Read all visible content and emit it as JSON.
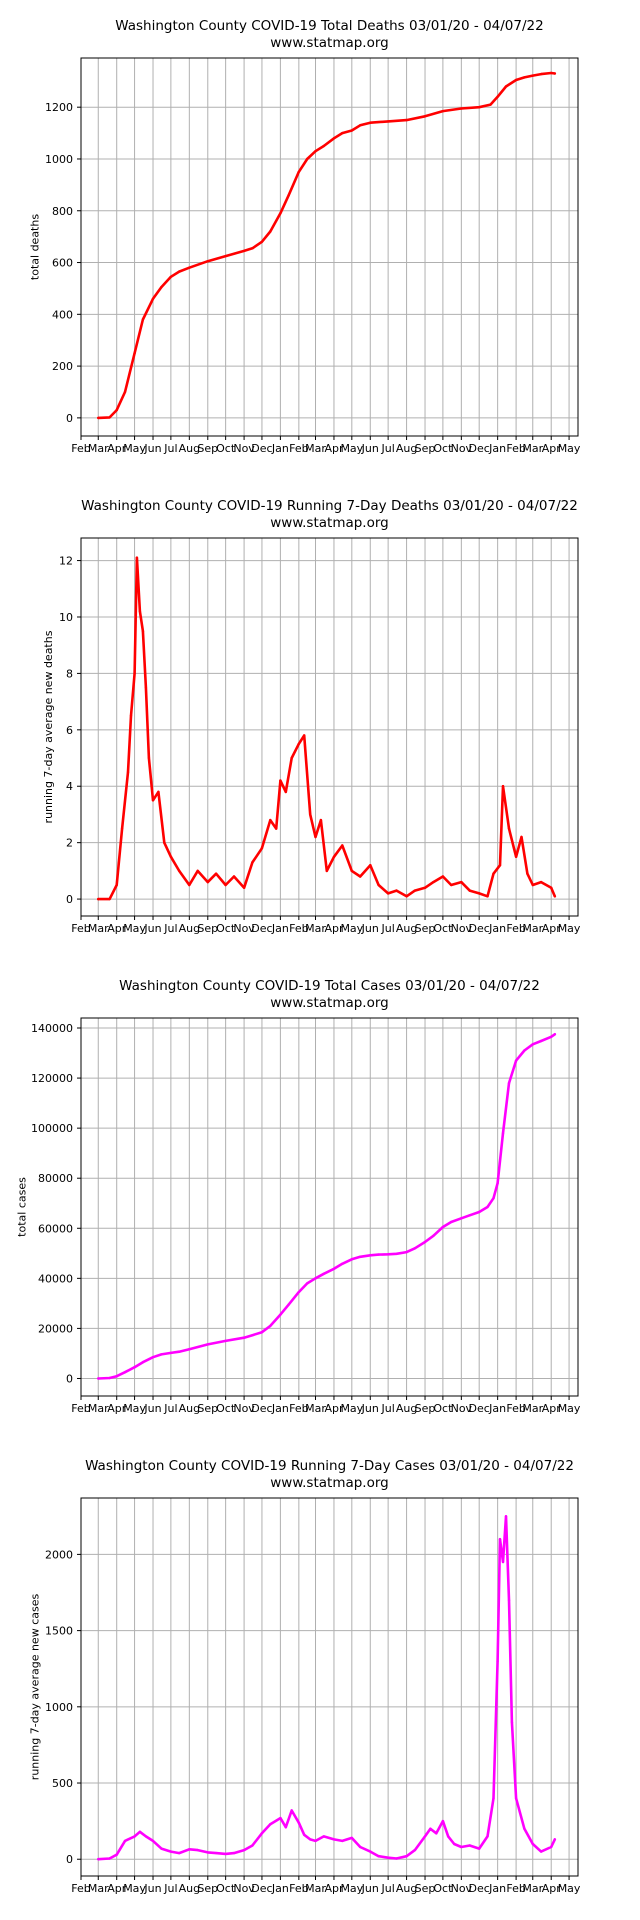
{
  "chart_data": [
    {
      "type": "line",
      "title": "Washington County COVID-19 Total Deaths 03/01/20 - 04/07/22",
      "subtitle": "www.statmap.org",
      "ylabel": "total deaths",
      "xlabel": "",
      "grid": true,
      "line_color": "#ff0000",
      "x_tick_labels": [
        "Feb",
        "Mar",
        "Apr",
        "May",
        "Jun",
        "Jul",
        "Aug",
        "Sep",
        "Oct",
        "Nov",
        "Dec",
        "Jan",
        "Feb",
        "Mar",
        "Apr",
        "May",
        "Jun",
        "Jul",
        "Aug",
        "Sep",
        "Oct",
        "Nov",
        "Dec",
        "Jan",
        "Feb",
        "Mar",
        "Apr",
        "May"
      ],
      "y_ticks": [
        0,
        200,
        400,
        600,
        800,
        1000,
        1200
      ],
      "ylim": [
        -70,
        1390
      ],
      "x": [
        "2020-03-01",
        "2020-03-20",
        "2020-04-01",
        "2020-04-15",
        "2020-05-01",
        "2020-05-15",
        "2020-06-01",
        "2020-06-15",
        "2020-07-01",
        "2020-07-15",
        "2020-08-01",
        "2020-09-01",
        "2020-10-01",
        "2020-11-01",
        "2020-11-15",
        "2020-12-01",
        "2020-12-15",
        "2021-01-01",
        "2021-01-15",
        "2021-02-01",
        "2021-02-15",
        "2021-03-01",
        "2021-03-15",
        "2021-04-01",
        "2021-04-15",
        "2021-05-01",
        "2021-05-15",
        "2021-06-01",
        "2021-07-01",
        "2021-08-01",
        "2021-09-01",
        "2021-10-01",
        "2021-11-01",
        "2021-12-01",
        "2021-12-20",
        "2022-01-01",
        "2022-01-15",
        "2022-02-01",
        "2022-02-15",
        "2022-03-01",
        "2022-03-15",
        "2022-04-01",
        "2022-04-07"
      ],
      "y": [
        0,
        2,
        30,
        100,
        250,
        380,
        460,
        505,
        545,
        565,
        580,
        605,
        625,
        645,
        655,
        680,
        720,
        790,
        860,
        950,
        1000,
        1030,
        1050,
        1080,
        1100,
        1110,
        1130,
        1140,
        1145,
        1150,
        1165,
        1185,
        1195,
        1200,
        1210,
        1240,
        1280,
        1305,
        1315,
        1322,
        1328,
        1332,
        1330
      ]
    },
    {
      "type": "line",
      "title": "Washington County COVID-19 Running 7-Day Deaths 03/01/20 - 04/07/22",
      "subtitle": "www.statmap.org",
      "ylabel": "running 7-day average new deaths",
      "xlabel": "",
      "grid": true,
      "line_color": "#ff0000",
      "x_tick_labels": [
        "Feb",
        "Mar",
        "Apr",
        "May",
        "Jun",
        "Jul",
        "Aug",
        "Sep",
        "Oct",
        "Nov",
        "Dec",
        "Jan",
        "Feb",
        "Mar",
        "Apr",
        "May",
        "Jun",
        "Jul",
        "Aug",
        "Sep",
        "Oct",
        "Nov",
        "Dec",
        "Jan",
        "Feb",
        "Mar",
        "Apr",
        "May"
      ],
      "y_ticks": [
        0,
        2,
        4,
        6,
        8,
        10,
        12
      ],
      "ylim": [
        -0.6,
        12.8
      ],
      "x": [
        "2020-03-01",
        "2020-03-20",
        "2020-04-01",
        "2020-04-10",
        "2020-04-20",
        "2020-04-25",
        "2020-05-01",
        "2020-05-05",
        "2020-05-10",
        "2020-05-15",
        "2020-05-20",
        "2020-05-25",
        "2020-06-01",
        "2020-06-10",
        "2020-06-20",
        "2020-07-01",
        "2020-07-15",
        "2020-08-01",
        "2020-08-15",
        "2020-09-01",
        "2020-09-15",
        "2020-10-01",
        "2020-10-15",
        "2020-11-01",
        "2020-11-15",
        "2020-12-01",
        "2020-12-15",
        "2020-12-25",
        "2021-01-01",
        "2021-01-10",
        "2021-01-20",
        "2021-02-01",
        "2021-02-10",
        "2021-02-20",
        "2021-03-01",
        "2021-03-10",
        "2021-03-20",
        "2021-04-01",
        "2021-04-15",
        "2021-05-01",
        "2021-05-15",
        "2021-06-01",
        "2021-06-15",
        "2021-07-01",
        "2021-07-15",
        "2021-08-01",
        "2021-08-15",
        "2021-09-01",
        "2021-09-15",
        "2021-10-01",
        "2021-10-15",
        "2021-11-01",
        "2021-11-15",
        "2021-12-01",
        "2021-12-15",
        "2021-12-25",
        "2022-01-05",
        "2022-01-10",
        "2022-01-20",
        "2022-02-01",
        "2022-02-10",
        "2022-02-20",
        "2022-03-01",
        "2022-03-15",
        "2022-04-01",
        "2022-04-07"
      ],
      "y": [
        0,
        0,
        0.5,
        2.5,
        4.5,
        6.5,
        8,
        12.1,
        10.2,
        9.5,
        7.5,
        5,
        3.5,
        3.8,
        2,
        1.5,
        1,
        0.5,
        1,
        0.6,
        0.9,
        0.5,
        0.8,
        0.4,
        1.3,
        1.8,
        2.8,
        2.5,
        4.2,
        3.8,
        5,
        5.5,
        5.8,
        3,
        2.2,
        2.8,
        1,
        1.5,
        1.9,
        1,
        0.8,
        1.2,
        0.5,
        0.2,
        0.3,
        0.1,
        0.3,
        0.4,
        0.6,
        0.8,
        0.5,
        0.6,
        0.3,
        0.2,
        0.1,
        0.9,
        1.2,
        4,
        2.5,
        1.5,
        2.2,
        0.9,
        0.5,
        0.6,
        0.4,
        0.1
      ]
    },
    {
      "type": "line",
      "title": "Washington County COVID-19 Total Cases 03/01/20 - 04/07/22",
      "subtitle": "www.statmap.org",
      "ylabel": "total cases",
      "xlabel": "",
      "grid": true,
      "line_color": "#ff00ff",
      "x_tick_labels": [
        "Feb",
        "Mar",
        "Apr",
        "May",
        "Jun",
        "Jul",
        "Aug",
        "Sep",
        "Oct",
        "Nov",
        "Dec",
        "Jan",
        "Feb",
        "Mar",
        "Apr",
        "May",
        "Jun",
        "Jul",
        "Aug",
        "Sep",
        "Oct",
        "Nov",
        "Dec",
        "Jan",
        "Feb",
        "Mar",
        "Apr",
        "May"
      ],
      "y_ticks": [
        0,
        20000,
        40000,
        60000,
        80000,
        100000,
        120000,
        140000
      ],
      "ylim": [
        -7000,
        144000
      ],
      "x": [
        "2020-03-01",
        "2020-03-20",
        "2020-04-01",
        "2020-04-15",
        "2020-05-01",
        "2020-05-15",
        "2020-06-01",
        "2020-06-15",
        "2020-07-01",
        "2020-07-15",
        "2020-08-01",
        "2020-09-01",
        "2020-10-01",
        "2020-11-01",
        "2020-11-15",
        "2020-12-01",
        "2020-12-15",
        "2021-01-01",
        "2021-01-15",
        "2021-02-01",
        "2021-02-15",
        "2021-03-01",
        "2021-03-15",
        "2021-04-01",
        "2021-04-15",
        "2021-05-01",
        "2021-05-15",
        "2021-06-01",
        "2021-06-15",
        "2021-07-01",
        "2021-07-15",
        "2021-08-01",
        "2021-08-15",
        "2021-09-01",
        "2021-09-15",
        "2021-10-01",
        "2021-10-15",
        "2021-11-01",
        "2021-11-15",
        "2021-12-01",
        "2021-12-15",
        "2021-12-25",
        "2022-01-01",
        "2022-01-10",
        "2022-01-20",
        "2022-02-01",
        "2022-02-15",
        "2022-03-01",
        "2022-03-15",
        "2022-04-01",
        "2022-04-07"
      ],
      "y": [
        0,
        200,
        900,
        2500,
        4500,
        6500,
        8500,
        9600,
        10200,
        10700,
        11700,
        13600,
        15000,
        16300,
        17300,
        18500,
        21000,
        25500,
        29500,
        34500,
        38000,
        40000,
        41800,
        43800,
        45800,
        47600,
        48600,
        49200,
        49500,
        49600,
        49800,
        50500,
        52000,
        54500,
        57000,
        60500,
        62500,
        64000,
        65200,
        66500,
        68500,
        72000,
        78000,
        98000,
        118000,
        127000,
        131000,
        133500,
        134800,
        136500,
        137500
      ]
    },
    {
      "type": "line",
      "title": "Washington County COVID-19 Running 7-Day Cases 03/01/20 - 04/07/22",
      "subtitle": "www.statmap.org",
      "ylabel": "running 7-day average new cases",
      "xlabel": "",
      "grid": true,
      "line_color": "#ff00ff",
      "x_tick_labels": [
        "Feb",
        "Mar",
        "Apr",
        "May",
        "Jun",
        "Jul",
        "Aug",
        "Sep",
        "Oct",
        "Nov",
        "Dec",
        "Jan",
        "Feb",
        "Mar",
        "Apr",
        "May",
        "Jun",
        "Jul",
        "Aug",
        "Sep",
        "Oct",
        "Nov",
        "Dec",
        "Jan",
        "Feb",
        "Mar",
        "Apr",
        "May"
      ],
      "y_ticks": [
        0,
        500,
        1000,
        1500,
        2000
      ],
      "ylim": [
        -110,
        2370
      ],
      "x": [
        "2020-03-01",
        "2020-03-20",
        "2020-04-01",
        "2020-04-15",
        "2020-05-01",
        "2020-05-10",
        "2020-05-20",
        "2020-06-01",
        "2020-06-15",
        "2020-07-01",
        "2020-07-15",
        "2020-08-01",
        "2020-08-15",
        "2020-09-01",
        "2020-09-15",
        "2020-10-01",
        "2020-10-15",
        "2020-11-01",
        "2020-11-15",
        "2020-12-01",
        "2020-12-15",
        "2021-01-01",
        "2021-01-10",
        "2021-01-20",
        "2021-02-01",
        "2021-02-10",
        "2021-02-20",
        "2021-03-01",
        "2021-03-15",
        "2021-04-01",
        "2021-04-15",
        "2021-05-01",
        "2021-05-15",
        "2021-06-01",
        "2021-06-15",
        "2021-07-01",
        "2021-07-15",
        "2021-08-01",
        "2021-08-15",
        "2021-09-01",
        "2021-09-10",
        "2021-09-20",
        "2021-10-01",
        "2021-10-10",
        "2021-10-20",
        "2021-11-01",
        "2021-11-15",
        "2021-12-01",
        "2021-12-15",
        "2021-12-25",
        "2022-01-01",
        "2022-01-05",
        "2022-01-10",
        "2022-01-15",
        "2022-01-20",
        "2022-01-25",
        "2022-02-01",
        "2022-02-15",
        "2022-03-01",
        "2022-03-15",
        "2022-04-01",
        "2022-04-07"
      ],
      "y": [
        0,
        5,
        30,
        120,
        150,
        180,
        150,
        120,
        70,
        50,
        40,
        65,
        60,
        45,
        40,
        35,
        40,
        60,
        90,
        170,
        230,
        270,
        210,
        320,
        240,
        160,
        130,
        120,
        150,
        130,
        120,
        140,
        80,
        50,
        20,
        10,
        5,
        20,
        60,
        150,
        200,
        170,
        250,
        150,
        100,
        80,
        90,
        70,
        150,
        400,
        1300,
        2100,
        1950,
        2250,
        1700,
        900,
        400,
        200,
        100,
        50,
        80,
        130
      ]
    }
  ]
}
